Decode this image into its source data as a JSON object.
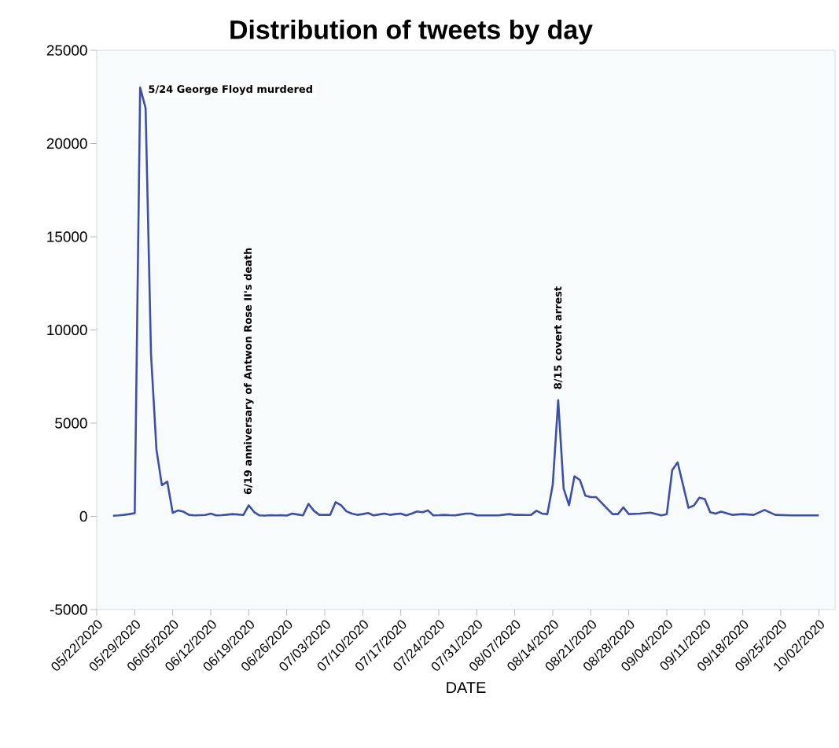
{
  "chart_data": {
    "type": "line",
    "title": "Distribution of tweets by day",
    "xlabel": "DATE",
    "x": [
      "2020-05-25",
      "2020-05-26",
      "2020-05-27",
      "2020-05-28",
      "2020-05-29",
      "2020-05-30",
      "2020-05-31",
      "2020-06-01",
      "2020-06-02",
      "2020-06-03",
      "2020-06-04",
      "2020-06-05",
      "2020-06-06",
      "2020-06-07",
      "2020-06-08",
      "2020-06-09",
      "2020-06-10",
      "2020-06-11",
      "2020-06-12",
      "2020-06-13",
      "2020-06-14",
      "2020-06-15",
      "2020-06-16",
      "2020-06-17",
      "2020-06-18",
      "2020-06-19",
      "2020-06-20",
      "2020-06-21",
      "2020-06-22",
      "2020-06-23",
      "2020-06-24",
      "2020-06-25",
      "2020-06-26",
      "2020-06-27",
      "2020-06-28",
      "2020-06-29",
      "2020-06-30",
      "2020-07-01",
      "2020-07-02",
      "2020-07-03",
      "2020-07-04",
      "2020-07-05",
      "2020-07-06",
      "2020-07-07",
      "2020-07-08",
      "2020-07-09",
      "2020-07-10",
      "2020-07-11",
      "2020-07-12",
      "2020-07-13",
      "2020-07-14",
      "2020-07-15",
      "2020-07-16",
      "2020-07-17",
      "2020-07-18",
      "2020-07-19",
      "2020-07-20",
      "2020-07-21",
      "2020-07-22",
      "2020-07-23",
      "2020-07-24",
      "2020-07-25",
      "2020-07-26",
      "2020-07-27",
      "2020-07-28",
      "2020-07-29",
      "2020-07-30",
      "2020-07-31",
      "2020-08-01",
      "2020-08-02",
      "2020-08-03",
      "2020-08-04",
      "2020-08-05",
      "2020-08-06",
      "2020-08-07",
      "2020-08-08",
      "2020-08-09",
      "2020-08-10",
      "2020-08-11",
      "2020-08-12",
      "2020-08-13",
      "2020-08-14",
      "2020-08-15",
      "2020-08-16",
      "2020-08-17",
      "2020-08-18",
      "2020-08-19",
      "2020-08-20",
      "2020-08-21",
      "2020-08-22",
      "2020-08-25",
      "2020-08-26",
      "2020-08-27",
      "2020-08-28",
      "2020-08-30",
      "2020-09-01",
      "2020-09-03",
      "2020-09-04",
      "2020-09-05",
      "2020-09-06",
      "2020-09-08",
      "2020-09-09",
      "2020-09-10",
      "2020-09-11",
      "2020-09-12",
      "2020-09-13",
      "2020-09-14",
      "2020-09-16",
      "2020-09-18",
      "2020-09-20",
      "2020-09-22",
      "2020-09-24",
      "2020-09-27",
      "2020-10-02"
    ],
    "series": [
      {
        "color": "#3f4fa8",
        "values": [
          30,
          50,
          80,
          120,
          170,
          23000,
          21900,
          8700,
          3590,
          1670,
          1860,
          190,
          320,
          250,
          80,
          50,
          60,
          70,
          150,
          50,
          60,
          90,
          120,
          100,
          70,
          590,
          230,
          50,
          40,
          60,
          50,
          60,
          40,
          150,
          100,
          50,
          670,
          300,
          80,
          80,
          80,
          760,
          600,
          270,
          150,
          80,
          120,
          180,
          50,
          100,
          150,
          80,
          120,
          150,
          50,
          150,
          260,
          220,
          320,
          50,
          60,
          80,
          60,
          50,
          100,
          150,
          150,
          50,
          50,
          50,
          50,
          50,
          90,
          120,
          80,
          80,
          70,
          80,
          300,
          150,
          120,
          1700,
          6230,
          1490,
          600,
          2150,
          1950,
          1110,
          1030,
          1030,
          120,
          120,
          480,
          120,
          150,
          200,
          50,
          120,
          2480,
          2900,
          460,
          580,
          1000,
          930,
          220,
          150,
          250,
          80,
          120,
          80,
          340,
          80,
          50,
          50
        ]
      }
    ],
    "xlim": [
      "2020-05-22",
      "2020-10-05"
    ],
    "xticks": [
      {
        "value": "2020-05-22",
        "label": "05/22/2020"
      },
      {
        "value": "2020-05-29",
        "label": "05/29/2020"
      },
      {
        "value": "2020-06-05",
        "label": "06/05/2020"
      },
      {
        "value": "2020-06-12",
        "label": "06/12/2020"
      },
      {
        "value": "2020-06-19",
        "label": "06/19/2020"
      },
      {
        "value": "2020-06-26",
        "label": "06/26/2020"
      },
      {
        "value": "2020-07-03",
        "label": "07/03/2020"
      },
      {
        "value": "2020-07-10",
        "label": "07/10/2020"
      },
      {
        "value": "2020-07-17",
        "label": "07/17/2020"
      },
      {
        "value": "2020-07-24",
        "label": "07/24/2020"
      },
      {
        "value": "2020-07-31",
        "label": "07/31/2020"
      },
      {
        "value": "2020-08-07",
        "label": "08/07/2020"
      },
      {
        "value": "2020-08-14",
        "label": "08/14/2020"
      },
      {
        "value": "2020-08-21",
        "label": "08/21/2020"
      },
      {
        "value": "2020-08-28",
        "label": "08/28/2020"
      },
      {
        "value": "2020-09-04",
        "label": "09/04/2020"
      },
      {
        "value": "2020-09-11",
        "label": "09/11/2020"
      },
      {
        "value": "2020-09-18",
        "label": "09/18/2020"
      },
      {
        "value": "2020-09-25",
        "label": "09/25/2020"
      },
      {
        "value": "2020-10-02",
        "label": "10/02/2020"
      }
    ],
    "ylim": [
      -5000,
      25000
    ],
    "yticks": [
      -5000,
      0,
      5000,
      10000,
      15000,
      20000,
      25000
    ],
    "annotations": [
      {
        "text": "5/24 George Floyd murdered",
        "x": "2020-05-30",
        "y": 23000
      },
      {
        "text": "6/19 anniversary of Antwon Rose II's death",
        "x": "2020-06-19",
        "y": 590
      },
      {
        "text": "8/15 covert arrest",
        "x": "2020-08-15",
        "y": 6230
      }
    ],
    "grid": false,
    "marker": "none",
    "line_style": "solid"
  }
}
